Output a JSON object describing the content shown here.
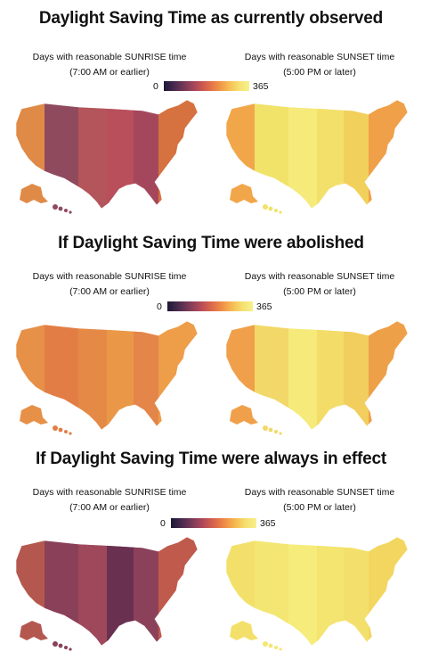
{
  "panels": [
    {
      "title": "Daylight Saving Time as currently observed",
      "sunrise_caption_1": "Days with reasonable SUNRISE time",
      "sunrise_caption_2": "(7:00 AM or earlier)",
      "sunset_caption_1": "Days with reasonable SUNSET time",
      "sunset_caption_2": "(5:00 PM or later)",
      "legend_min": "0",
      "legend_max": "365",
      "sunrise_scheme": "current_sunrise",
      "sunset_scheme": "current_sunset"
    },
    {
      "title": "If Daylight Saving Time were abolished",
      "sunrise_caption_1": "Days with reasonable SUNRISE time",
      "sunrise_caption_2": "(7:00 AM or earlier)",
      "sunset_caption_1": "Days with reasonable SUNSET time",
      "sunset_caption_2": "(5:00 PM or later)",
      "legend_min": "0",
      "legend_max": "365",
      "sunrise_scheme": "abolished_sunrise",
      "sunset_scheme": "abolished_sunset"
    },
    {
      "title": "If Daylight Saving Time were always in effect",
      "sunrise_caption_1": "Days with reasonable SUNRISE time",
      "sunrise_caption_2": "(7:00 AM or earlier)",
      "sunset_caption_1": "Days with reasonable SUNSET time",
      "sunset_caption_2": "(5:00 PM or later)",
      "legend_min": "0",
      "legend_max": "365",
      "sunrise_scheme": "permanent_sunrise",
      "sunset_scheme": "permanent_sunset"
    }
  ],
  "colors": {
    "scale": [
      "#1c1838",
      "#4a2a4e",
      "#7a3a58",
      "#b0485a",
      "#d8634b",
      "#ee8a45",
      "#f6b850",
      "#f5e070",
      "#f7f08a"
    ]
  },
  "schemes": {
    "current_sunrise": [
      "#e08a48",
      "#8f4a5e",
      "#b3555a",
      "#b84f5a",
      "#a5475c",
      "#d5723f"
    ],
    "current_sunset": [
      "#f2a64a",
      "#f1e269",
      "#f5ea7a",
      "#f3e06a",
      "#f2d05c",
      "#f0a048"
    ],
    "abolished_sunrise": [
      "#e69048",
      "#e27e45",
      "#e58a46",
      "#ea9848",
      "#e4854a",
      "#ee9d48"
    ],
    "abolished_sunset": [
      "#f0a04a",
      "#f2d868",
      "#f5ea7a",
      "#f3dc68",
      "#f1ce5e",
      "#eea048"
    ],
    "permanent_sunrise": [
      "#b4584f",
      "#8a4058",
      "#a0485b",
      "#6a3050",
      "#8c415a",
      "#c05a4c"
    ],
    "permanent_sunset": [
      "#f3e06a",
      "#f4e672",
      "#f6ec7c",
      "#f4e470",
      "#f3e06c",
      "#f2d660"
    ]
  }
}
